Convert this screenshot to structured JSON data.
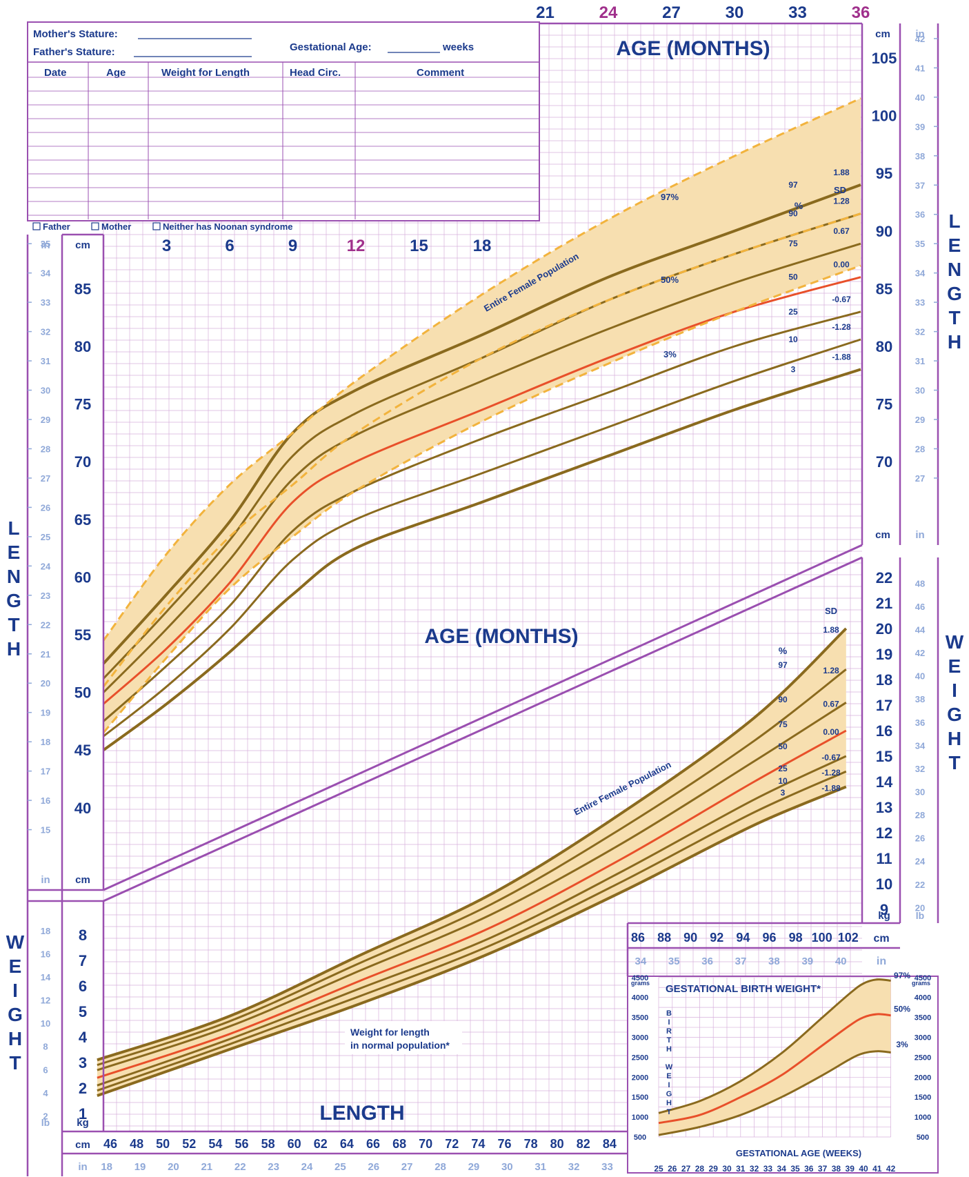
{
  "form": {
    "mothers_stature": "Mother's Stature:",
    "fathers_stature": "Father's Stature:",
    "gestational_age": "Gestational Age:",
    "weeks": "weeks",
    "columns": [
      "Date",
      "Age",
      "Weight for Length",
      "Head Circ.",
      "Comment"
    ],
    "checkboxes": [
      "Father",
      "Mother",
      "Neither has Noonan syndrome"
    ]
  },
  "colors": {
    "grid": "#d7b0dc",
    "frame": "#9a4fb0",
    "band": "#f7dfb0",
    "curve": "#8a6a1e",
    "median": "#e8502a",
    "dashed": "#f2b33d",
    "text": "#1b3a8c",
    "inch": "#8fa8d8",
    "magenta": "#a0308c"
  },
  "labels": {
    "age_months_top": "AGE (MONTHS)",
    "age_months_mid": "AGE (MONTHS)",
    "length_side": "LENGTH",
    "weight_side": "WEIGHT",
    "length_bottom": "LENGTH",
    "entire_female_population": "Entire Female Population",
    "weight_for_length_note": [
      "Weight for length",
      "in normal population*"
    ],
    "unit_cm": "cm",
    "unit_in": "in",
    "unit_kg": "kg",
    "unit_lb": "lb",
    "pct_symbol": "%",
    "sd": "SD",
    "gestational_birth_weight": "GESTATIONAL BIRTH WEIGHT*",
    "gestational_age_weeks": "GESTATIONAL AGE (WEEKS)",
    "birth_weight_vertical": "BIRTH WEIGHT",
    "grams": "grams",
    "pop_97": "97%",
    "pop_50": "50%",
    "pop_3": "3%"
  },
  "chart_data": [
    {
      "type": "line",
      "name": "length-for-age",
      "x_ticks_months": [
        3,
        6,
        9,
        12,
        15,
        18,
        21,
        24,
        27,
        30,
        33,
        36
      ],
      "y_ticks_cm": [
        40,
        45,
        50,
        55,
        60,
        65,
        70,
        75,
        80,
        85,
        90,
        95,
        100,
        105
      ],
      "y_ticks_in": [
        15,
        16,
        17,
        18,
        19,
        20,
        21,
        22,
        23,
        24,
        25,
        26,
        27,
        28,
        29,
        30,
        31,
        32,
        33,
        34,
        35,
        36,
        37,
        38,
        39,
        40,
        41,
        42
      ],
      "x_range": [
        0,
        36
      ],
      "y_range_cm": [
        37,
        108
      ],
      "x": [
        0,
        3,
        6,
        9,
        12,
        18,
        24,
        30,
        36
      ],
      "series": [
        {
          "name": "97",
          "sd": "1.88",
          "values": [
            52.5,
            58.5,
            64.8,
            72.5,
            76.2,
            81.0,
            86.0,
            90.0,
            94.0
          ]
        },
        {
          "name": "90",
          "sd": "1.28",
          "values": [
            51.2,
            57.0,
            63.2,
            70.5,
            74.2,
            79.0,
            84.0,
            88.0,
            91.5
          ]
        },
        {
          "name": "75",
          "sd": "0.67",
          "values": [
            50.0,
            55.5,
            61.5,
            68.5,
            72.3,
            77.0,
            81.5,
            85.5,
            88.9
          ]
        },
        {
          "name": "50",
          "sd": "0.00",
          "values": [
            49.0,
            53.8,
            59.5,
            66.5,
            70.0,
            74.5,
            79.0,
            83.0,
            86.0
          ]
        },
        {
          "name": "25",
          "sd": "-0.67",
          "values": [
            47.5,
            52.3,
            57.5,
            64.0,
            67.5,
            72.0,
            76.0,
            80.0,
            83.0
          ]
        },
        {
          "name": "10",
          "sd": "-1.28",
          "values": [
            46.2,
            50.5,
            55.5,
            61.5,
            65.0,
            69.0,
            73.0,
            77.0,
            80.6
          ]
        },
        {
          "name": "3",
          "sd": "-1.88",
          "values": [
            45.0,
            49.0,
            53.5,
            58.5,
            62.5,
            66.5,
            70.5,
            74.5,
            78.0
          ]
        }
      ],
      "population": {
        "97": [
          54.5,
          62.0,
          68.0,
          72.5,
          77.0,
          84.5,
          91.0,
          96.5,
          101.5
        ],
        "50": [
          50.5,
          57.5,
          63.5,
          68.0,
          72.5,
          79.0,
          84.0,
          88.0,
          91.5
        ],
        "3": [
          46.5,
          53.0,
          59.0,
          63.5,
          67.5,
          73.5,
          78.5,
          83.0,
          87.0
        ]
      }
    },
    {
      "type": "line",
      "name": "weight-for-length",
      "x_ticks_cm": [
        46,
        48,
        50,
        52,
        54,
        56,
        58,
        60,
        62,
        64,
        66,
        68,
        70,
        72,
        74,
        76,
        78,
        80,
        82,
        84,
        86,
        88,
        90,
        92,
        94,
        96,
        98,
        100,
        102
      ],
      "x_ticks_in": [
        18,
        19,
        20,
        21,
        22,
        23,
        24,
        25,
        26,
        27,
        28,
        29,
        30,
        31,
        32,
        33,
        34,
        35,
        36,
        37,
        38,
        39,
        40
      ],
      "y_ticks_kg": [
        1,
        2,
        3,
        4,
        5,
        6,
        7,
        8,
        9,
        10,
        11,
        12,
        13,
        14,
        15,
        16,
        17,
        18,
        19,
        20,
        21,
        22
      ],
      "y_ticks_lb": [
        2,
        4,
        6,
        8,
        10,
        12,
        14,
        16,
        18,
        20,
        22,
        24,
        26,
        28,
        30,
        32,
        34,
        36,
        38,
        40,
        42,
        44,
        46,
        48
      ],
      "x": [
        45,
        55,
        65,
        75,
        85,
        95,
        102
      ],
      "series": [
        {
          "name": "97",
          "sd": "1.88",
          "values": [
            3.1,
            4.8,
            7.2,
            9.6,
            12.8,
            16.5,
            20.0
          ]
        },
        {
          "name": "90",
          "sd": "1.28",
          "values": [
            2.9,
            4.6,
            6.9,
            9.2,
            12.2,
            15.6,
            18.4
          ]
        },
        {
          "name": "75",
          "sd": "0.67",
          "values": [
            2.7,
            4.4,
            6.6,
            8.8,
            11.6,
            14.8,
            17.1
          ]
        },
        {
          "name": "50",
          "sd": "0.00",
          "values": [
            2.4,
            4.1,
            6.2,
            8.3,
            11.0,
            14.0,
            16.0
          ]
        },
        {
          "name": "25",
          "sd": "-0.67",
          "values": [
            2.1,
            3.9,
            5.9,
            7.9,
            10.5,
            13.3,
            15.0
          ]
        },
        {
          "name": "10",
          "sd": "-1.28",
          "values": [
            1.9,
            3.7,
            5.6,
            7.6,
            10.1,
            12.8,
            14.4
          ]
        },
        {
          "name": "3",
          "sd": "-1.88",
          "values": [
            1.7,
            3.5,
            5.3,
            7.3,
            9.7,
            12.3,
            13.8
          ]
        }
      ]
    },
    {
      "type": "line",
      "name": "gestational-birth-weight",
      "x_ticks_weeks": [
        25,
        26,
        27,
        28,
        29,
        30,
        31,
        32,
        33,
        34,
        35,
        36,
        37,
        38,
        39,
        40,
        41,
        42
      ],
      "y_ticks_grams": [
        500,
        1000,
        1500,
        2000,
        2500,
        3000,
        3500,
        4000,
        4500
      ],
      "x": [
        25,
        28,
        31,
        34,
        37,
        39,
        40,
        41,
        42
      ],
      "series": [
        {
          "name": "97%",
          "values": [
            1100,
            1400,
            1900,
            2600,
            3500,
            4100,
            4350,
            4450,
            4420
          ]
        },
        {
          "name": "50%",
          "values": [
            850,
            1050,
            1500,
            2050,
            2800,
            3300,
            3500,
            3580,
            3550
          ]
        },
        {
          "name": "3%",
          "values": [
            550,
            750,
            1050,
            1500,
            2050,
            2450,
            2600,
            2650,
            2620
          ]
        }
      ]
    }
  ]
}
